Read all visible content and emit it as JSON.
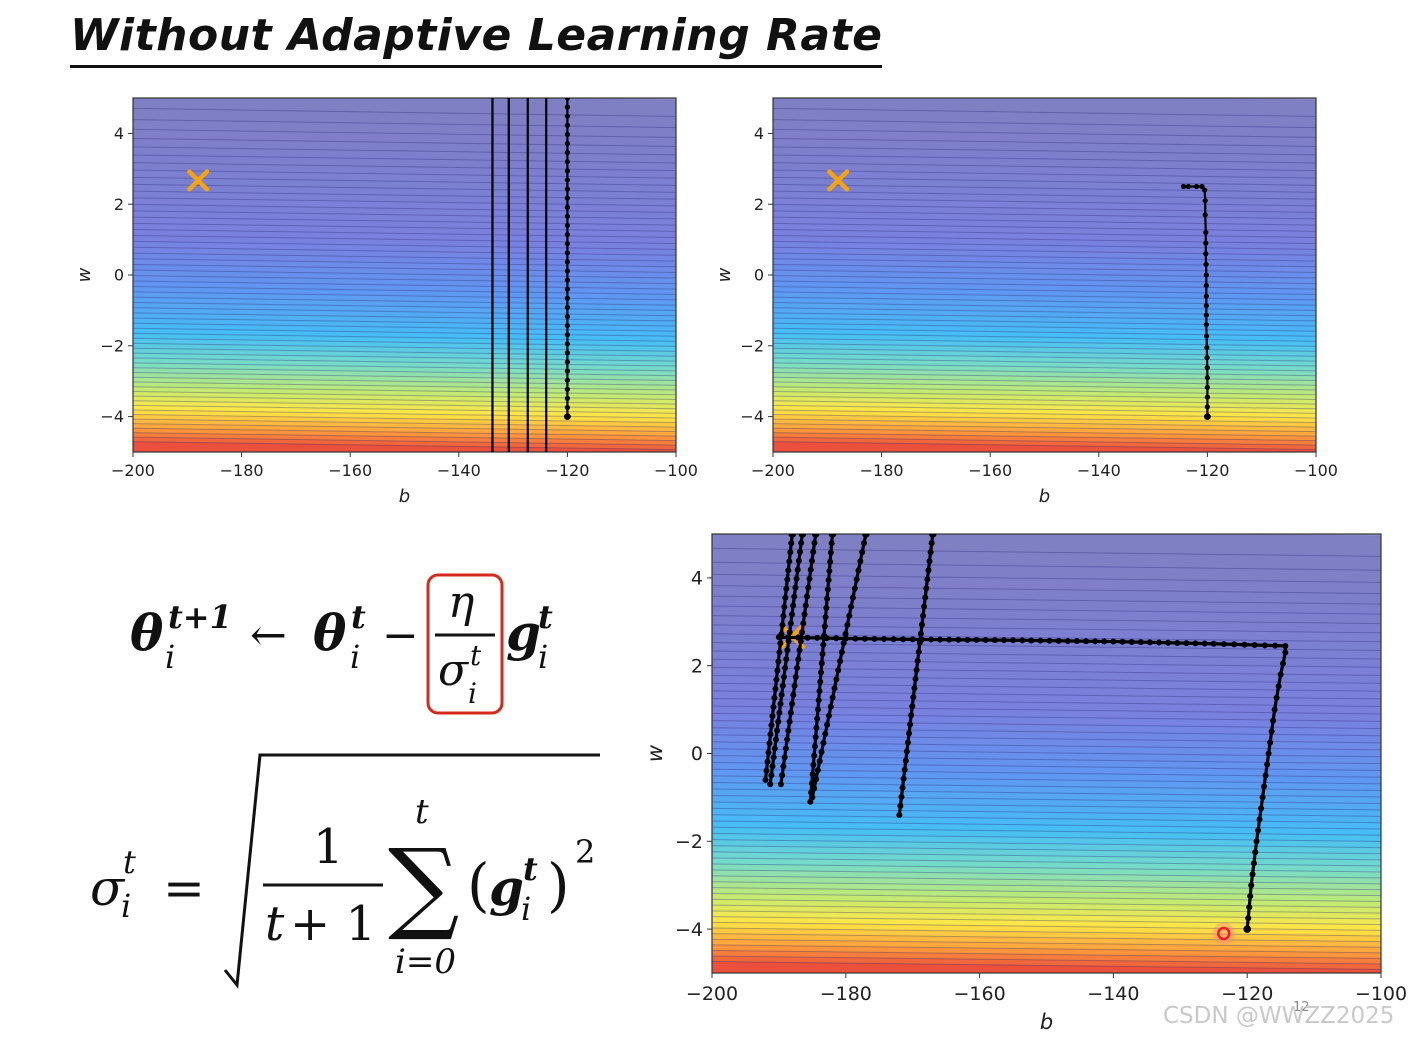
{
  "title": "Without Adaptive Learning Rate",
  "watermark": "CSDN @WWZZ2025",
  "page_number": "12",
  "formula": {
    "update_rule": "θ_i^{t+1} ← θ_i^t − (η / σ_i^t) g_i^t",
    "sigma_definition": "σ_i^t = sqrt( 1/(t+1) · Σ_{i=0}^{t} (g_i^t)^2 )",
    "highlight_color": "#d42a1e"
  },
  "colors": {
    "contour_top": "#7f7fc4",
    "trajectory": "#000000",
    "target_marker": "#f5a20f",
    "end_marker": "#e8202a"
  },
  "chart_data": [
    {
      "type": "line",
      "panel": "top-left",
      "title": "",
      "xlabel": "b",
      "ylabel": "w",
      "xlim": [
        -200,
        -100
      ],
      "ylim": [
        -5,
        5
      ],
      "x_ticks": [
        "−200",
        "−180",
        "−160",
        "−140",
        "−120",
        "−100"
      ],
      "y_ticks": [
        "4",
        "2",
        "0",
        "−2",
        "−4"
      ],
      "x_tick_values": [
        -200,
        -180,
        -160,
        -140,
        -120,
        -100
      ],
      "y_tick_values": [
        4,
        2,
        0,
        -2,
        -4
      ],
      "background": "contour of loss over (b, w)",
      "target": {
        "b": -188,
        "w": 2.67,
        "marker": "x"
      },
      "series": [
        {
          "points": [
            [
              -120,
              -4
            ],
            [
              -120,
              5
            ]
          ],
          "markers": true
        },
        {
          "points": [
            [
              -123.9,
              -5
            ],
            [
              -123.9,
              5
            ]
          ],
          "markers": false
        },
        {
          "points": [
            [
              -127.3,
              -5
            ],
            [
              -127.3,
              5
            ]
          ],
          "markers": false
        },
        {
          "points": [
            [
              -130.8,
              -5
            ],
            [
              -130.8,
              5
            ]
          ],
          "markers": false
        },
        {
          "points": [
            [
              -133.8,
              -5
            ],
            [
              -133.8,
              5
            ]
          ],
          "markers": false
        }
      ]
    },
    {
      "type": "line",
      "panel": "top-right",
      "title": "",
      "xlabel": "b",
      "ylabel": "w",
      "xlim": [
        -200,
        -100
      ],
      "ylim": [
        -5,
        5
      ],
      "x_ticks": [
        "−200",
        "−180",
        "−160",
        "−140",
        "−120",
        "−100"
      ],
      "y_ticks": [
        "4",
        "2",
        "0",
        "−2",
        "−4"
      ],
      "x_tick_values": [
        -200,
        -180,
        -160,
        -140,
        -120,
        -100
      ],
      "y_tick_values": [
        4,
        2,
        0,
        -2,
        -4
      ],
      "background": "contour of loss over (b, w)",
      "target": {
        "b": -188,
        "w": 2.67,
        "marker": "x"
      },
      "series": [
        {
          "points": [
            [
              -120,
              -4
            ],
            [
              -120,
              -2.9
            ],
            [
              -120.1,
              -2.05
            ],
            [
              -120.2,
              -1.4
            ],
            [
              -120.2,
              -0.6
            ],
            [
              -120.2,
              0
            ],
            [
              -120.3,
              0.6
            ],
            [
              -120.3,
              1.2
            ],
            [
              -120.4,
              1.7
            ],
            [
              -120.4,
              2.1
            ],
            [
              -120.5,
              2.4
            ],
            [
              -121,
              2.5
            ],
            [
              -122,
              2.5
            ],
            [
              -123.5,
              2.5
            ],
            [
              -124.4,
              2.5
            ]
          ],
          "markers": true
        }
      ]
    },
    {
      "type": "line",
      "panel": "bottom-right",
      "title": "",
      "xlabel": "b",
      "ylabel": "w",
      "xlim": [
        -200,
        -100
      ],
      "ylim": [
        -5,
        5
      ],
      "x_ticks": [
        "−200",
        "−180",
        "−160",
        "−140",
        "−120",
        "−100"
      ],
      "y_ticks": [
        "4",
        "2",
        "0",
        "−2",
        "−4"
      ],
      "x_tick_values": [
        -200,
        -180,
        -160,
        -140,
        -120,
        -100
      ],
      "y_tick_values": [
        4,
        2,
        0,
        -2,
        -4
      ],
      "background": "contour of loss over (b, w)",
      "target": {
        "b": -188,
        "w": 2.67,
        "marker": "x"
      },
      "end_point": {
        "b": -123.5,
        "w": -4.1,
        "marker": "circle"
      },
      "series": [
        {
          "points": [
            [
              -120,
              -4
            ],
            [
              -119.4,
              -3
            ],
            [
              -118.6,
              -2
            ],
            [
              -117.7,
              -1
            ],
            [
              -116.8,
              0
            ],
            [
              -115.9,
              1
            ],
            [
              -115,
              1.8
            ],
            [
              -114.3,
              2.3
            ],
            [
              -114.3,
              2.45
            ],
            [
              -125,
              2.5
            ],
            [
              -140,
              2.55
            ],
            [
              -155,
              2.58
            ],
            [
              -170,
              2.6
            ],
            [
              -180,
              2.62
            ],
            [
              -190,
              2.65
            ]
          ],
          "markers": true
        },
        {
          "points": [
            [
              -188,
              5
            ],
            [
              -192,
              -0.6
            ]
          ],
          "markers": true
        },
        {
          "points": [
            [
              -186.5,
              5
            ],
            [
              -191.3,
              -0.7
            ]
          ],
          "markers": true
        },
        {
          "points": [
            [
              -184.5,
              5
            ],
            [
              -189.7,
              -0.7
            ]
          ],
          "markers": true
        },
        {
          "points": [
            [
              -182,
              5
            ],
            [
              -185.3,
              -1.1
            ]
          ],
          "markers": true
        },
        {
          "points": [
            [
              -177,
              5
            ],
            [
              -185,
              -1.0
            ]
          ],
          "markers": true
        },
        {
          "points": [
            [
              -167,
              5
            ],
            [
              -172,
              -1.4
            ]
          ],
          "markers": true
        }
      ]
    }
  ]
}
